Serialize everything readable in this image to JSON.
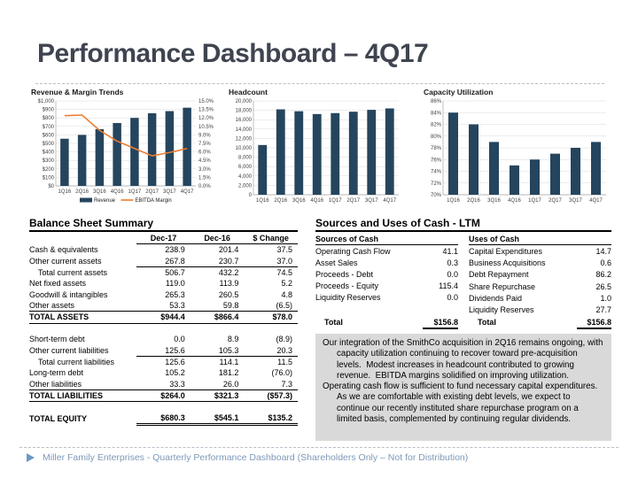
{
  "title": "Performance Dashboard – 4Q17",
  "colors": {
    "bar": "#25455E",
    "line": "#ED7D31",
    "grid": "#D9D9D9",
    "axis": "#A6A6A6",
    "title_text": "#3F4450",
    "footer_text": "#7E99B8",
    "footer_bullet": "#6D99C4",
    "commentary_bg": "#D9D9D9"
  },
  "chart_data": [
    {
      "type": "bar",
      "title": "Revenue & Margin Trends",
      "categories": [
        "1Q16",
        "2Q16",
        "3Q16",
        "4Q16",
        "1Q17",
        "2Q17",
        "3Q17",
        "4Q17"
      ],
      "series": [
        {
          "name": "Revenue",
          "kind": "bar",
          "axis": "left",
          "values": [
            555,
            600,
            668,
            740,
            800,
            855,
            880,
            920
          ]
        },
        {
          "name": "EBITDA Margin",
          "kind": "line",
          "axis": "right",
          "values": [
            12.4,
            12.5,
            9.8,
            7.9,
            6.6,
            5.3,
            5.9,
            6.6
          ]
        }
      ],
      "left_axis": {
        "min": 0,
        "max": 1000,
        "step": 100,
        "format": "usd"
      },
      "right_axis": {
        "min": 0,
        "max": 15,
        "step": 1.5,
        "format": "pct1"
      },
      "legend": [
        {
          "kind": "bar",
          "label": "Revenue"
        },
        {
          "kind": "line",
          "label": "EBITDA Margin"
        }
      ],
      "grid": true,
      "legend_position": "bottom"
    },
    {
      "type": "bar",
      "title": "Headcount",
      "categories": [
        "1Q16",
        "2Q16",
        "3Q16",
        "4Q16",
        "1Q17",
        "2Q17",
        "3Q17",
        "4Q17"
      ],
      "series": [
        {
          "name": "Headcount",
          "kind": "bar",
          "axis": "left",
          "values": [
            10600,
            18200,
            17800,
            17200,
            17400,
            17700,
            18100,
            18400
          ]
        }
      ],
      "left_axis": {
        "min": 0,
        "max": 20000,
        "step": 2000,
        "format": "int"
      },
      "grid": true
    },
    {
      "type": "bar",
      "title": "Capacity Utilization",
      "categories": [
        "1Q16",
        "2Q16",
        "3Q16",
        "4Q16",
        "1Q17",
        "2Q17",
        "3Q17",
        "4Q17"
      ],
      "series": [
        {
          "name": "Capacity Utilization",
          "kind": "bar",
          "axis": "left",
          "values": [
            84,
            82,
            79,
            75,
            76,
            77,
            78,
            79
          ]
        }
      ],
      "left_axis": {
        "min": 70,
        "max": 86,
        "step": 2,
        "format": "pct0"
      },
      "grid": true
    }
  ],
  "balance_sheet": {
    "heading": "Balance Sheet Summary",
    "columns": [
      "Dec-17",
      "Dec-16",
      "$ Change"
    ],
    "rows": [
      {
        "label": "Cash & equivalents",
        "values": [
          "238.9",
          "201.4",
          "37.5"
        ],
        "style": ""
      },
      {
        "label": "Other current assets",
        "values": [
          "267.8",
          "230.7",
          "37.0"
        ],
        "style": "underline"
      },
      {
        "label": "Total current assets",
        "values": [
          "506.7",
          "432.2",
          "74.5"
        ],
        "style": "indent"
      },
      {
        "label": "Net fixed assets",
        "values": [
          "119.0",
          "113.9",
          "5.2"
        ],
        "style": ""
      },
      {
        "label": "Goodwill & intangibles",
        "values": [
          "265.3",
          "260.5",
          "4.8"
        ],
        "style": ""
      },
      {
        "label": "Other assets",
        "values": [
          "53.3",
          "59.8",
          "(6.5)"
        ],
        "style": ""
      },
      {
        "label": "TOTAL ASSETS",
        "values": [
          "$944.4",
          "$866.4",
          "$78.0"
        ],
        "style": "total"
      },
      {
        "label": "",
        "values": [
          "",
          "",
          ""
        ],
        "style": "spacer"
      },
      {
        "label": "Short-term debt",
        "values": [
          "0.0",
          "8.9",
          "(8.9)"
        ],
        "style": ""
      },
      {
        "label": "Other current liabilities",
        "values": [
          "125.6",
          "105.3",
          "20.3"
        ],
        "style": "underline"
      },
      {
        "label": "Total current liabilities",
        "values": [
          "125.6",
          "114.1",
          "11.5"
        ],
        "style": "indent"
      },
      {
        "label": "Long-term debt",
        "values": [
          "105.2",
          "181.2",
          "(76.0)"
        ],
        "style": ""
      },
      {
        "label": "Other liabilities",
        "values": [
          "33.3",
          "26.0",
          "7.3"
        ],
        "style": ""
      },
      {
        "label": "TOTAL LIABILITIES",
        "values": [
          "$264.0",
          "$321.3",
          "($57.3)"
        ],
        "style": "total"
      },
      {
        "label": "",
        "values": [
          "",
          "",
          ""
        ],
        "style": "spacer"
      },
      {
        "label": "TOTAL EQUITY",
        "values": [
          "$680.3",
          "$545.1",
          "$135.2"
        ],
        "style": "total-equity"
      }
    ]
  },
  "cash_flow": {
    "heading": "Sources and Uses of Cash - LTM",
    "sources": {
      "header": "Sources of Cash",
      "rows": [
        {
          "label": "Operating Cash Flow",
          "value": "41.1"
        },
        {
          "label": "Asset Sales",
          "value": "0.3"
        },
        {
          "label": "Proceeds - Debt",
          "value": "0.0"
        },
        {
          "label": "Proceeds - Equity",
          "value": "115.4"
        },
        {
          "label": "Liquidity Reserves",
          "value": "0.0"
        }
      ],
      "total_label": "Total",
      "total_value": "$156.8"
    },
    "uses": {
      "header": "Uses of Cash",
      "rows": [
        {
          "label": "Capital Expenditures",
          "value": "14.7"
        },
        {
          "label": "Business Acquisitions",
          "value": "0.6"
        },
        {
          "label": "Debt Repayment",
          "value": "86.2"
        },
        {
          "label": "Share Repurchase",
          "value": "26.5"
        },
        {
          "label": "Dividends Paid",
          "value": "1.0"
        },
        {
          "label": "Liquidity Reserves",
          "value": "27.7"
        }
      ],
      "total_label": "Total",
      "total_value": "$156.8"
    }
  },
  "commentary": {
    "paragraphs": [
      "Our integration of the SmithCo acquisition in 2Q16 remains ongoing, with capacity utilization continuing to recover toward pre-acquisition levels.  Modest increases in headcount contributed to growing revenue.  EBITDA margins solidified on improving utilization.",
      "Operating cash flow is sufficient to fund necessary capital expenditures.  As we are comfortable with existing debt levels, we expect to continue our recently instituted share repurchase program on a limited basis, complemented by continuing regular dividends."
    ]
  },
  "footer": {
    "text": "Miller Family Enterprises - Quarterly Performance Dashboard (Shareholders Only – Not for Distribution)"
  }
}
